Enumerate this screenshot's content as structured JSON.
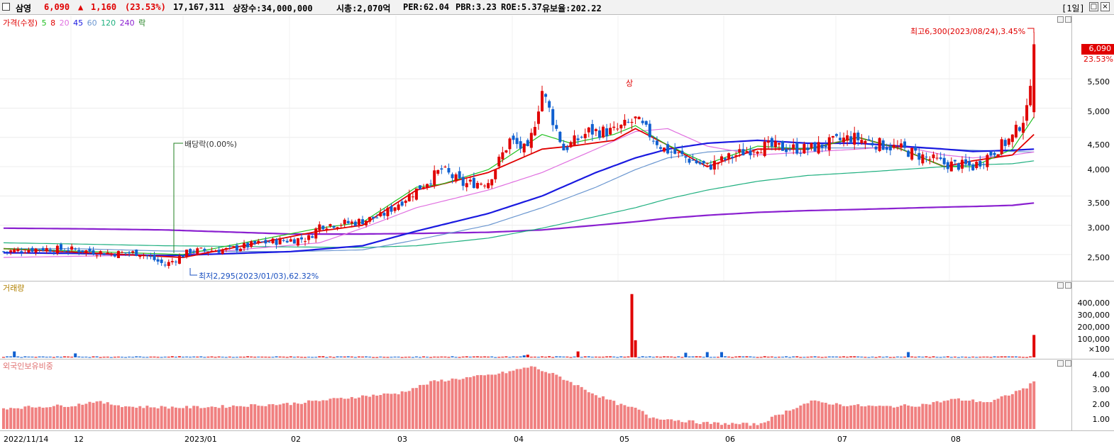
{
  "header": {
    "name": "삼영",
    "price": "6,090",
    "change_arrow": "▲",
    "change": "1,160",
    "change_pct": "(23.53%)",
    "volume": "17,167,311",
    "shares": "상장수:34,000,000",
    "mcap": "시총:2,070억",
    "per": "PER:62.04",
    "pbr": "PBR:3.23",
    "roe": "ROE:5.37",
    "float": "유보율:202.22",
    "period": "[1일]"
  },
  "legend": {
    "price_label": "가격(수정)",
    "ma5": "5",
    "ma8": "8",
    "ma20": "20",
    "ma45": "45",
    "ma60": "60",
    "ma120": "120",
    "ma240": "240",
    "rak": "락",
    "volume_label": "거래량",
    "foreign_label": "외국인보유비중"
  },
  "annotations": {
    "high": "최고6,300(2023/08/24),3.45%",
    "low": "최저2,295(2023/01/03),62.32%",
    "dividend": "배당락(0.00%)",
    "upper_limit": "상",
    "current_price": "6,090",
    "current_pct": "23.53%"
  },
  "price_axis": [
    "5,500",
    "5,000",
    "4,500",
    "4,000",
    "3,500",
    "3,000",
    "2,500"
  ],
  "volume_axis": [
    "400,000",
    "300,000",
    "200,000",
    "100,000",
    "×100"
  ],
  "foreign_axis": [
    "4.00",
    "3.00",
    "2.00",
    "1.00"
  ],
  "x_axis": [
    "2022/11/14",
    "12",
    "2023/01",
    "02",
    "03",
    "04",
    "05",
    "06",
    "07",
    "08"
  ],
  "colors": {
    "up": "#e00000",
    "down": "#1060d0",
    "ma5": "#20c020",
    "ma8": "#e00000",
    "ma20": "#e070e0",
    "ma45": "#1a1ae0",
    "ma60": "#6a96d0",
    "ma120": "#20b080",
    "ma240": "#8a20d0",
    "foreign": "#f08080"
  },
  "chart_data": [
    {
      "type": "candlestick",
      "title": "가격(수정)",
      "ylim": [
        2100,
        6450
      ],
      "series": [
        {
          "name": "가격",
          "close_path": [
            [
              0,
              2550
            ],
            [
              10,
              2600
            ],
            [
              20,
              2580
            ],
            [
              30,
              2520
            ],
            [
              38,
              2530
            ],
            [
              45,
              2320
            ],
            [
              52,
              2560
            ],
            [
              62,
              2580
            ],
            [
              72,
              2700
            ],
            [
              85,
              2780
            ],
            [
              88,
              3000
            ],
            [
              98,
              3050
            ],
            [
              105,
              3150
            ],
            [
              115,
              3600
            ],
            [
              122,
              3950
            ],
            [
              128,
              3700
            ],
            [
              135,
              3750
            ],
            [
              141,
              4450
            ],
            [
              146,
              4250
            ],
            [
              150,
              5300
            ],
            [
              156,
              4300
            ],
            [
              163,
              4600
            ],
            [
              170,
              4600
            ],
            [
              176,
              4800
            ],
            [
              184,
              4300
            ],
            [
              196,
              4000
            ],
            [
              210,
              4350
            ],
            [
              224,
              4300
            ],
            [
              236,
              4500
            ],
            [
              250,
              4300
            ],
            [
              262,
              4050
            ],
            [
              270,
              4000
            ],
            [
              281,
              4500
            ],
            [
              285,
              4930
            ],
            [
              287,
              6090
            ]
          ]
        },
        {
          "name": "5",
          "x": [
            0,
            50,
            88,
            100,
            115,
            122,
            135,
            150,
            158,
            170,
            176,
            184,
            196,
            210,
            224,
            238,
            250,
            262,
            270,
            281,
            287
          ],
          "y": [
            2600,
            2500,
            2950,
            3050,
            3650,
            3700,
            3950,
            4550,
            4400,
            4550,
            4700,
            4400,
            4050,
            4350,
            4300,
            4500,
            4300,
            4000,
            4000,
            4300,
            4850
          ]
        },
        {
          "name": "8",
          "x": [
            0,
            50,
            88,
            100,
            115,
            122,
            135,
            150,
            158,
            170,
            176,
            184,
            196,
            210,
            224,
            238,
            250,
            262,
            270,
            281,
            287
          ],
          "y": [
            2600,
            2450,
            2900,
            3000,
            3600,
            3700,
            3900,
            4300,
            4350,
            4450,
            4650,
            4400,
            4000,
            4300,
            4300,
            4500,
            4300,
            4000,
            4100,
            4200,
            4550
          ]
        },
        {
          "name": "20",
          "x": [
            0,
            50,
            88,
            100,
            115,
            135,
            150,
            165,
            176,
            185,
            196,
            210,
            224,
            238,
            250,
            262,
            270,
            281,
            287
          ],
          "y": [
            2450,
            2500,
            2700,
            2950,
            3300,
            3600,
            3900,
            4300,
            4600,
            4650,
            4350,
            4200,
            4250,
            4300,
            4350,
            4200,
            4150,
            4200,
            4250
          ]
        },
        {
          "name": "45",
          "x": [
            0,
            20,
            45,
            80,
            100,
            115,
            135,
            150,
            165,
            176,
            185,
            196,
            210,
            224,
            238,
            250,
            262,
            270,
            281,
            287
          ],
          "y": [
            2530,
            2520,
            2480,
            2550,
            2650,
            2900,
            3200,
            3500,
            3900,
            4150,
            4300,
            4400,
            4450,
            4400,
            4400,
            4350,
            4300,
            4260,
            4280,
            4300
          ]
        },
        {
          "name": "60",
          "x": [
            0,
            20,
            45,
            80,
            100,
            115,
            135,
            150,
            165,
            176,
            185,
            196,
            210,
            224,
            238,
            250,
            262,
            270,
            281,
            287
          ],
          "y": [
            2600,
            2600,
            2560,
            2550,
            2580,
            2750,
            3000,
            3300,
            3650,
            3950,
            4150,
            4250,
            4300,
            4320,
            4320,
            4330,
            4300,
            4280,
            4260,
            4250
          ]
        },
        {
          "name": "120",
          "x": [
            0,
            20,
            45,
            80,
            100,
            115,
            135,
            150,
            165,
            176,
            185,
            196,
            210,
            224,
            238,
            250,
            262,
            270,
            281,
            287
          ],
          "y": [
            2700,
            2680,
            2650,
            2630,
            2620,
            2650,
            2780,
            2950,
            3150,
            3300,
            3450,
            3600,
            3750,
            3850,
            3900,
            3950,
            4000,
            4030,
            4050,
            4100
          ]
        },
        {
          "name": "240",
          "x": [
            0,
            20,
            45,
            80,
            100,
            115,
            135,
            150,
            165,
            176,
            185,
            196,
            210,
            224,
            238,
            250,
            262,
            270,
            281,
            287
          ],
          "y": [
            2950,
            2940,
            2920,
            2850,
            2850,
            2860,
            2880,
            2920,
            3000,
            3060,
            3120,
            3170,
            3220,
            3250,
            3270,
            3290,
            3310,
            3320,
            3340,
            3380
          ]
        }
      ]
    },
    {
      "type": "bar",
      "title": "거래량",
      "ylim": [
        0,
        480000
      ],
      "series": [
        {
          "name": "거래량",
          "spikes": [
            [
              3,
              45000
            ],
            [
              20,
              30000
            ],
            [
              145,
              15000
            ],
            [
              146,
              20000
            ],
            [
              160,
              45000
            ],
            [
              175,
              480000
            ],
            [
              176,
              130000
            ],
            [
              190,
              35000
            ],
            [
              196,
              40000
            ],
            [
              200,
              40000
            ],
            [
              252,
              40000
            ],
            [
              287,
              170000
            ]
          ]
        }
      ]
    },
    {
      "type": "bar",
      "title": "외국인보유비중",
      "ylim": [
        0,
        4.8
      ],
      "series": [
        {
          "name": "외국인보유비중",
          "points": [
            [
              0,
              1.4
            ],
            [
              20,
              1.6
            ],
            [
              25,
              1.85
            ],
            [
              35,
              1.5
            ],
            [
              50,
              1.45
            ],
            [
              60,
              1.5
            ],
            [
              80,
              1.7
            ],
            [
              100,
              2.2
            ],
            [
              110,
              2.4
            ],
            [
              120,
              3.2
            ],
            [
              135,
              3.6
            ],
            [
              140,
              3.8
            ],
            [
              147,
              4.2
            ],
            [
              155,
              3.5
            ],
            [
              165,
              2.3
            ],
            [
              172,
              1.6
            ],
            [
              177,
              1.3
            ],
            [
              180,
              0.8
            ],
            [
              195,
              0.4
            ],
            [
              210,
              0.3
            ],
            [
              220,
              1.4
            ],
            [
              225,
              1.85
            ],
            [
              235,
              1.6
            ],
            [
              245,
              1.5
            ],
            [
              255,
              1.6
            ],
            [
              265,
              2.0
            ],
            [
              275,
              1.8
            ],
            [
              285,
              2.8
            ],
            [
              287,
              3.15
            ]
          ]
        }
      ]
    }
  ]
}
